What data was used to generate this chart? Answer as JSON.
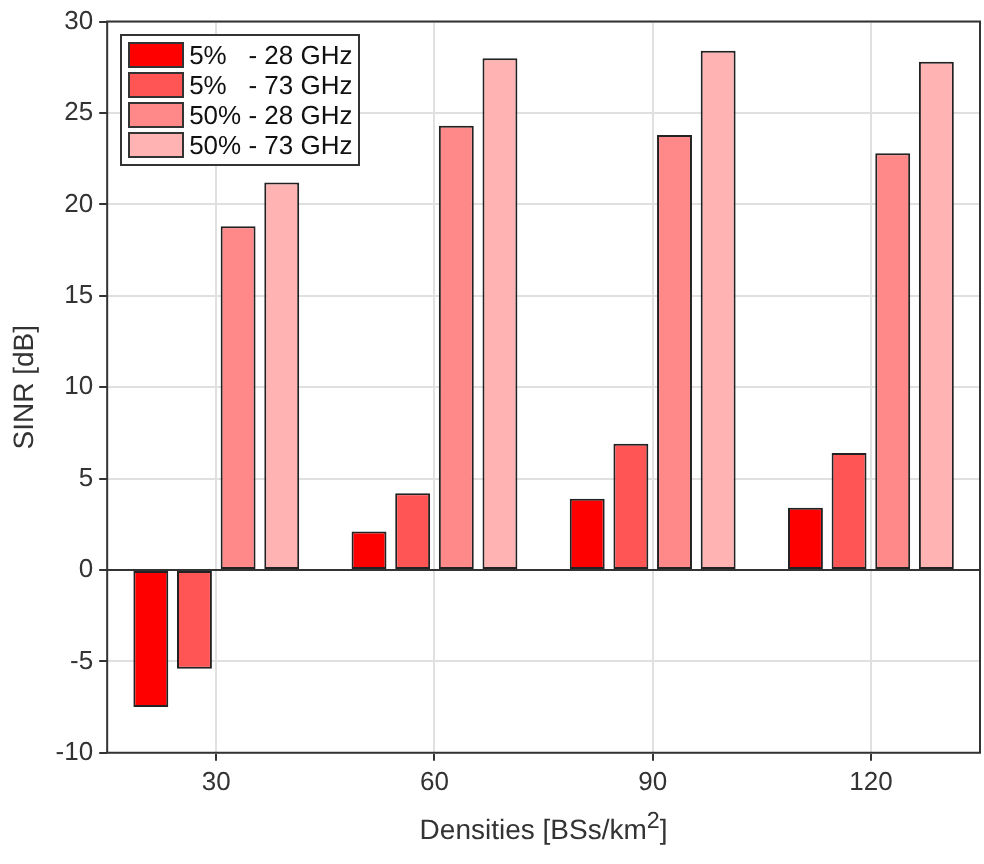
{
  "chart_data": {
    "type": "bar",
    "xlabel": "Densities [BSs/km$^{2}$]",
    "ylabel": "SINR [dB]",
    "categories": [
      "30",
      "60",
      "90",
      "120"
    ],
    "series": [
      {
        "name": "5%   - 28 GHz",
        "color": "#ff0000",
        "values": [
          -7.5,
          2.1,
          3.9,
          3.4
        ]
      },
      {
        "name": "5%   - 73 GHz",
        "color": "#ff5555",
        "values": [
          -5.4,
          4.2,
          6.9,
          6.4
        ]
      },
      {
        "name": "50% - 28 GHz",
        "color": "#ff8888",
        "values": [
          18.8,
          24.3,
          23.8,
          22.8
        ]
      },
      {
        "name": "50% - 73 GHz",
        "color": "#ffb3b3",
        "values": [
          21.2,
          28.0,
          28.4,
          27.8
        ]
      }
    ],
    "ylim": [
      -10,
      30
    ],
    "yticks": [
      -10,
      -5,
      0,
      5,
      10,
      15,
      20,
      25,
      30
    ],
    "grid": true,
    "legend": "top left"
  }
}
